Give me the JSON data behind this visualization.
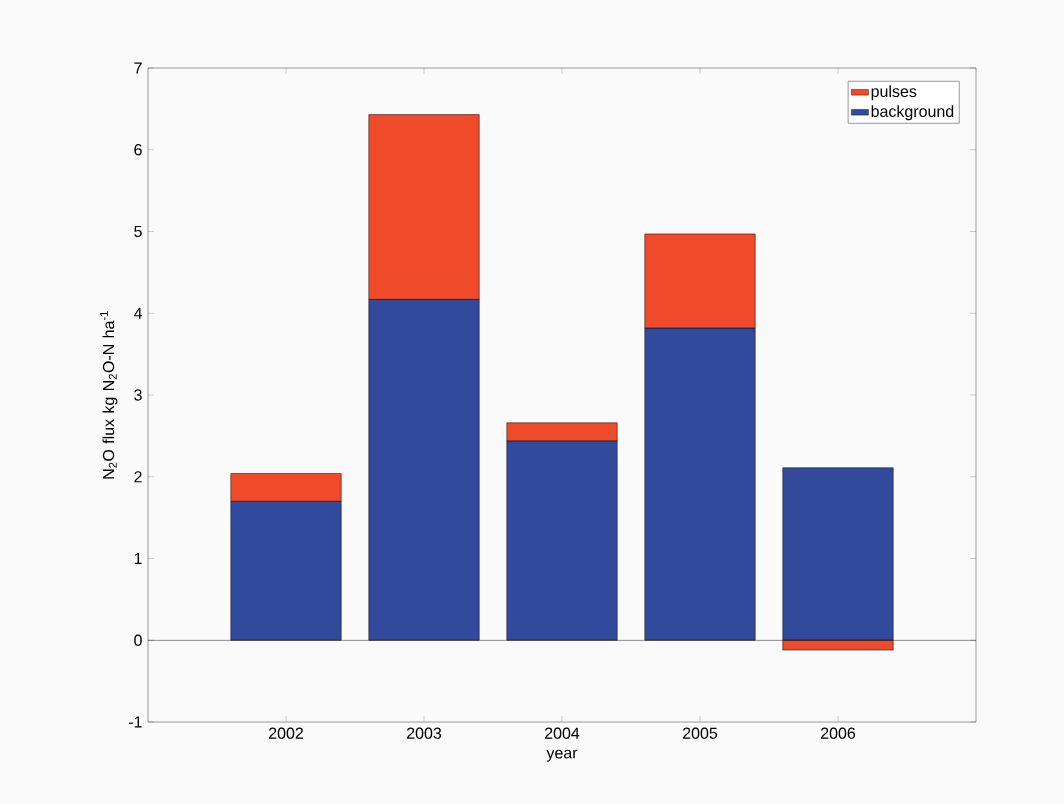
{
  "chart_data": {
    "type": "bar",
    "stacked": true,
    "xlabel": "year",
    "ylabel": "N$_{2}$O flux kg N$_{2}$O-N ha$^{-1}$",
    "categories": [
      "2002",
      "2003",
      "2004",
      "2005",
      "2006"
    ],
    "series": [
      {
        "name": "background",
        "color": "#324a9c",
        "values": [
          1.7,
          4.17,
          2.44,
          3.82,
          2.11
        ]
      },
      {
        "name": "pulses",
        "color": "#ef4a2a",
        "values": [
          0.34,
          2.26,
          0.22,
          1.15,
          -0.12
        ]
      }
    ],
    "ylim": [
      -1,
      7
    ],
    "yticks": [
      -1,
      0,
      1,
      2,
      3,
      4,
      5,
      6,
      7
    ],
    "legend": "top right"
  }
}
